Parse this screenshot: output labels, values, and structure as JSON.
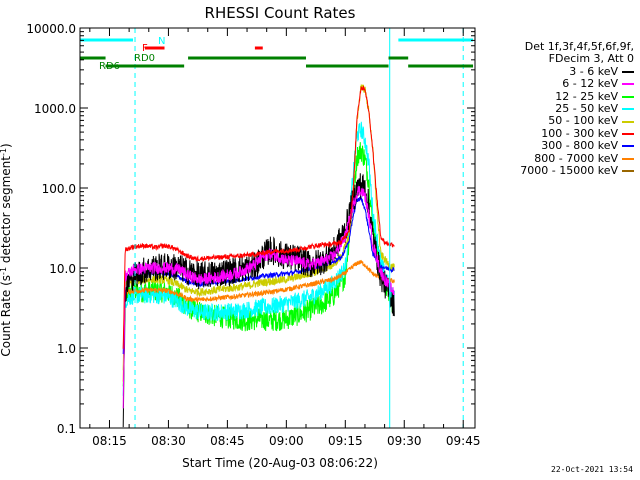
{
  "chart_data": {
    "type": "line",
    "title": "RHESSI Count Rates",
    "xlabel": "Start Time (20-Aug-03 08:06:22)",
    "ylabel_parts": {
      "main": "Count Rate (s",
      "sup": "-1",
      "tail": " detector segment",
      "sup2": "-1",
      "close": ")"
    },
    "log_y": true,
    "x_range_min": [
      7.5,
      108.0
    ],
    "ylim": [
      0.1,
      10000
    ],
    "x_ticks": [
      {
        "t": 15,
        "label": "08:15"
      },
      {
        "t": 30,
        "label": "08:30"
      },
      {
        "t": 45,
        "label": "08:45"
      },
      {
        "t": 60,
        "label": "09:00"
      },
      {
        "t": 75,
        "label": "09:15"
      },
      {
        "t": 90,
        "label": "09:30"
      },
      {
        "t": 105,
        "label": "09:45"
      }
    ],
    "y_ticks": [
      {
        "v": 0.1,
        "label": "0.1"
      },
      {
        "v": 1,
        "label": "1.0"
      },
      {
        "v": 10,
        "label": "10.0"
      },
      {
        "v": 100,
        "label": "100.0"
      },
      {
        "v": 1000,
        "label": "1000.0"
      },
      {
        "v": 10000,
        "label": "10000.0"
      }
    ],
    "legend_header": [
      "Det 1f,3f,4f,5f,6f,9f,",
      "FDecim 3, Att 0"
    ],
    "series": [
      {
        "name": "3 - 6 keV",
        "color": "#000000",
        "noise": 0.35,
        "values": [
          [
            18.5,
            0.15
          ],
          [
            19,
            5
          ],
          [
            20,
            7
          ],
          [
            21,
            8
          ],
          [
            23,
            9
          ],
          [
            26,
            10
          ],
          [
            30,
            10.5
          ],
          [
            33,
            10
          ],
          [
            35,
            9
          ],
          [
            38,
            8
          ],
          [
            42,
            8.5
          ],
          [
            48,
            9.5
          ],
          [
            52,
            10.5
          ],
          [
            54,
            14
          ],
          [
            56,
            17
          ],
          [
            58,
            15
          ],
          [
            60,
            14
          ],
          [
            63,
            13
          ],
          [
            66,
            11
          ],
          [
            69,
            12
          ],
          [
            72,
            16
          ],
          [
            75,
            30
          ],
          [
            77,
            70
          ],
          [
            78,
            100
          ],
          [
            79,
            110
          ],
          [
            80,
            100
          ],
          [
            81,
            60
          ],
          [
            82,
            25
          ],
          [
            84,
            8
          ],
          [
            86,
            5
          ],
          [
            87.5,
            3.5
          ]
        ]
      },
      {
        "name": "6 - 12 keV",
        "color": "#ff00ff",
        "noise": 0.15,
        "values": [
          [
            18.5,
            0.2
          ],
          [
            19,
            8
          ],
          [
            21,
            9.5
          ],
          [
            25,
            10
          ],
          [
            30,
            10
          ],
          [
            33,
            9.5
          ],
          [
            35,
            8
          ],
          [
            38,
            7.2
          ],
          [
            42,
            7.6
          ],
          [
            48,
            8.8
          ],
          [
            52,
            11
          ],
          [
            54,
            14
          ],
          [
            56,
            15
          ],
          [
            58,
            14
          ],
          [
            60,
            12.5
          ],
          [
            63,
            12
          ],
          [
            66,
            11
          ],
          [
            69,
            12
          ],
          [
            72,
            14
          ],
          [
            75,
            25
          ],
          [
            77,
            60
          ],
          [
            78,
            90
          ],
          [
            79,
            95
          ],
          [
            80,
            80
          ],
          [
            81,
            45
          ],
          [
            82,
            20
          ],
          [
            84,
            9
          ],
          [
            86,
            6
          ],
          [
            87.5,
            5
          ]
        ]
      },
      {
        "name": "12 - 25 keV",
        "color": "#00ff00",
        "noise": 0.28,
        "values": [
          [
            18.5,
            0.3
          ],
          [
            19,
            4.5
          ],
          [
            21,
            5
          ],
          [
            26,
            5.2
          ],
          [
            30,
            5
          ],
          [
            33,
            4
          ],
          [
            35,
            3.2
          ],
          [
            38,
            2.8
          ],
          [
            42,
            2.5
          ],
          [
            47,
            2.3
          ],
          [
            50,
            2.2
          ],
          [
            53,
            2.3
          ],
          [
            56,
            2.2
          ],
          [
            60,
            2.3
          ],
          [
            63,
            2.6
          ],
          [
            66,
            3
          ],
          [
            69,
            3.5
          ],
          [
            72,
            4.5
          ],
          [
            75,
            8
          ],
          [
            77,
            80
          ],
          [
            78,
            250
          ],
          [
            79,
            300
          ],
          [
            80,
            230
          ],
          [
            81,
            120
          ],
          [
            82,
            35
          ],
          [
            84,
            10
          ],
          [
            86,
            5
          ],
          [
            87.5,
            3.2
          ]
        ]
      },
      {
        "name": "25 - 50 keV",
        "color": "#00ffff",
        "noise": 0.22,
        "values": [
          [
            18.5,
            0.3
          ],
          [
            19,
            4
          ],
          [
            21,
            4.5
          ],
          [
            26,
            4.6
          ],
          [
            30,
            4.4
          ],
          [
            33,
            3.6
          ],
          [
            35,
            3.1
          ],
          [
            38,
            2.8
          ],
          [
            42,
            2.8
          ],
          [
            47,
            2.9
          ],
          [
            50,
            3
          ],
          [
            53,
            3.2
          ],
          [
            56,
            3.3
          ],
          [
            60,
            3.6
          ],
          [
            63,
            3.9
          ],
          [
            66,
            4.3
          ],
          [
            69,
            5.2
          ],
          [
            72,
            6.5
          ],
          [
            75,
            10
          ],
          [
            77,
            150
          ],
          [
            78,
            450
          ],
          [
            79,
            550
          ],
          [
            80,
            400
          ],
          [
            81,
            200
          ],
          [
            82,
            50
          ],
          [
            84,
            12
          ],
          [
            86,
            6
          ],
          [
            87.5,
            4.2
          ]
        ]
      },
      {
        "name": "50 - 100 keV",
        "color": "#cccc00",
        "noise": 0.1,
        "values": [
          [
            18.5,
            0.5
          ],
          [
            19,
            6.5
          ],
          [
            22,
            7
          ],
          [
            26,
            7.2
          ],
          [
            30,
            7
          ],
          [
            33,
            6
          ],
          [
            35,
            5.2
          ],
          [
            38,
            5
          ],
          [
            42,
            5.3
          ],
          [
            47,
            5.7
          ],
          [
            50,
            6
          ],
          [
            53,
            6.5
          ],
          [
            56,
            6.8
          ],
          [
            60,
            7.2
          ],
          [
            63,
            7.8
          ],
          [
            66,
            8.5
          ],
          [
            69,
            9.5
          ],
          [
            72,
            11
          ],
          [
            74,
            14
          ],
          [
            76,
            25
          ],
          [
            77,
            80
          ],
          [
            78,
            700
          ],
          [
            79,
            1900
          ],
          [
            80,
            1700
          ],
          [
            81,
            900
          ],
          [
            82,
            300
          ],
          [
            83,
            60
          ],
          [
            84,
            15
          ],
          [
            86,
            11
          ],
          [
            87.5,
            10
          ]
        ]
      },
      {
        "name": "100 - 300 keV",
        "color": "#ff0000",
        "noise": 0.06,
        "values": [
          [
            18.5,
            1
          ],
          [
            19,
            17
          ],
          [
            21,
            18.5
          ],
          [
            24,
            19
          ],
          [
            27,
            18
          ],
          [
            29,
            19
          ],
          [
            31,
            18
          ],
          [
            33,
            16
          ],
          [
            35,
            14
          ],
          [
            37,
            13
          ],
          [
            42,
            13.5
          ],
          [
            47,
            14
          ],
          [
            50,
            14.5
          ],
          [
            53,
            15
          ],
          [
            56,
            16
          ],
          [
            60,
            16.5
          ],
          [
            63,
            17
          ],
          [
            66,
            18.5
          ],
          [
            69,
            19.5
          ],
          [
            72,
            20
          ],
          [
            74,
            21
          ],
          [
            76,
            30
          ],
          [
            77,
            90
          ],
          [
            78,
            800
          ],
          [
            79,
            1800
          ],
          [
            80,
            1750
          ],
          [
            81,
            900
          ],
          [
            82,
            300
          ],
          [
            83,
            80
          ],
          [
            84,
            25
          ],
          [
            85,
            21
          ],
          [
            86,
            20
          ],
          [
            87.5,
            19.5
          ]
        ]
      },
      {
        "name": "300 - 800 keV",
        "color": "#0000ff",
        "noise": 0.06,
        "values": [
          [
            18.5,
            0.8
          ],
          [
            19,
            8
          ],
          [
            22,
            8.5
          ],
          [
            26,
            8.8
          ],
          [
            30,
            8.6
          ],
          [
            33,
            7.6
          ],
          [
            35,
            6.6
          ],
          [
            38,
            6.3
          ],
          [
            42,
            6.6
          ],
          [
            47,
            7
          ],
          [
            50,
            7.4
          ],
          [
            53,
            7.8
          ],
          [
            56,
            8.1
          ],
          [
            60,
            8.5
          ],
          [
            63,
            9
          ],
          [
            66,
            9.8
          ],
          [
            69,
            10.8
          ],
          [
            72,
            12
          ],
          [
            74,
            13.5
          ],
          [
            76,
            22
          ],
          [
            77,
            45
          ],
          [
            78,
            70
          ],
          [
            79,
            75
          ],
          [
            80,
            55
          ],
          [
            81,
            30
          ],
          [
            82,
            15
          ],
          [
            84,
            10.5
          ],
          [
            86,
            9.8
          ],
          [
            87.5,
            9.5
          ]
        ]
      },
      {
        "name": "800 - 7000 keV",
        "color": "#ff8000",
        "noise": 0.06,
        "values": [
          [
            18.5,
            0.4
          ],
          [
            19,
            5
          ],
          [
            22,
            5.2
          ],
          [
            26,
            5.3
          ],
          [
            30,
            5.2
          ],
          [
            33,
            4.6
          ],
          [
            35,
            4.1
          ],
          [
            38,
            4
          ],
          [
            42,
            4.2
          ],
          [
            47,
            4.4
          ],
          [
            50,
            4.6
          ],
          [
            53,
            4.8
          ],
          [
            56,
            5
          ],
          [
            60,
            5.4
          ],
          [
            63,
            5.8
          ],
          [
            66,
            6.2
          ],
          [
            69,
            6.7
          ],
          [
            72,
            7.2
          ],
          [
            74,
            8
          ],
          [
            76,
            9.5
          ],
          [
            77,
            10.5
          ],
          [
            78,
            11.5
          ],
          [
            79,
            11.8
          ],
          [
            80,
            11
          ],
          [
            81,
            9.5
          ],
          [
            82,
            8.5
          ],
          [
            84,
            7.5
          ],
          [
            86,
            7
          ],
          [
            87.5,
            6.8
          ]
        ]
      },
      {
        "name": "7000 - 15000 keV",
        "color": "#996600",
        "noise": 0.0,
        "values": []
      }
    ],
    "attenuator_bars": [
      {
        "label": "N",
        "color": "#00ffff",
        "label_color": "#00ffff",
        "segments": [
          [
            7.5,
            21
          ],
          [
            88.5,
            107.5
          ]
        ],
        "y": 40
      },
      {
        "label": "F",
        "color": "#ff0000",
        "label_color": "#ff0000",
        "segments": [
          [
            24,
            29
          ],
          [
            52,
            54
          ]
        ],
        "y": 48
      },
      {
        "label": "RD0",
        "color": "#008000",
        "label_color": "#008000",
        "segments": [
          [
            7.5,
            14
          ],
          [
            35,
            65
          ],
          [
            86,
            91
          ]
        ],
        "y": 58
      },
      {
        "label": "RD6",
        "color": "#008000",
        "label_color": "#008000",
        "segments": [
          [
            14,
            34
          ],
          [
            65,
            86
          ],
          [
            91,
            107.5
          ]
        ],
        "y": 66
      }
    ],
    "vertical_lines": [
      {
        "t": 21.5,
        "color": "#00ffff",
        "dashed": true
      },
      {
        "t": 86.3,
        "color": "#00ffff",
        "dashed": false
      },
      {
        "t": 105.0,
        "color": "#00ffff",
        "dashed": true
      }
    ],
    "axis_color": "#000000",
    "background": "#ffffff"
  },
  "footer": {
    "date_stamp": "22-Oct-2021 13:54"
  }
}
